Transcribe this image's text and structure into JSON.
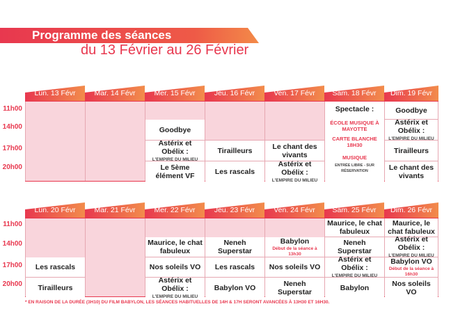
{
  "header": {
    "title": "Programme des séances",
    "subtitle": "du 13 Février au 26 Février"
  },
  "colors": {
    "accent": "#e8384f",
    "accent_light": "#f9d5dc",
    "tab_light": "#f28c4b"
  },
  "times": [
    "11h00",
    "14h00",
    "17h00",
    "20h00"
  ],
  "week1": {
    "days": [
      "Lun. 13 Févr",
      "Mar. 14 Févr",
      "Mer. 15 Févr",
      "Jeu. 16 Févr",
      "Ven. 17 Févr",
      "Sam. 18 Févr",
      "Dim. 19 Févr"
    ],
    "wed_14": "Goodbye",
    "wed_17_title": "Astérix et Obélix :",
    "wed_17_sub": "L'EMPIRE DU MILIEU",
    "wed_20": "Le 5ème élément VF",
    "thu_17": "Tirailleurs",
    "thu_20": "Les rascals",
    "fri_17": "Le chant des vivants",
    "fri_20_title": "Astérix et Obélix :",
    "fri_20_sub": "L'EMPIRE DU MILIEU",
    "sat_spectacle": "Spectacle :",
    "sat_school": "ÉCOLE MUSIQUE À MAYOTTE",
    "sat_carte": "CARTE BLANCHE 18H30",
    "sat_musique": "MUSIQUE",
    "sat_entree": "ENTRÉE LIBRE - SUR RÉSERVATION",
    "sun_11": "Goodbye",
    "sun_14_title": "Astérix et Obélix :",
    "sun_14_sub": "L'EMPIRE DU MILIEU",
    "sun_17": "Tirailleurs",
    "sun_20": "Le chant des vivants"
  },
  "week2": {
    "days": [
      "Lun. 20 Févr",
      "Mar. 21 Févr",
      "Mer. 22 Févr",
      "Jeu. 23 Févr",
      "Ven. 24 Févr",
      "Sam. 25 Févr",
      "Dim. 26 Févr"
    ],
    "mon_17": "Les rascals",
    "mon_20": "Tirailleurs",
    "wed_14": "Maurice, le chat fabuleux",
    "wed_17": "Nos soleils VO",
    "wed_20_title": "Astérix et Obélix :",
    "wed_20_sub": "L'EMPIRE DU MILIEU",
    "thu_14": "Neneh Superstar",
    "thu_17": "Les rascals",
    "thu_20": "Babylon VO",
    "fri_14": "Babylon",
    "fri_14_note": "Début de la séance à 13h30",
    "fri_17": "Nos soleils VO",
    "fri_20": "Neneh Superstar",
    "sat_11": "Maurice, le chat fabuleux",
    "sat_14": "Neneh Superstar",
    "sat_17_title": "Astérix et Obélix :",
    "sat_17_sub": "L'EMPIRE DU MILIEU",
    "sat_20": "Babylon",
    "sun_11": "Maurice, le chat fabuleux",
    "sun_14_title": "Astérix et Obélix :",
    "sun_14_sub": "L'EMPIRE DU MILIEU",
    "sun_17": "Babylon VO",
    "sun_17_note": "Début de la séance à 16h30",
    "sun_20": "Nos soleils VO"
  },
  "footnote": "* EN RAISON DE LA DURÉE (3H10) DU FILM BABYLON, LES SÉANCES HABITUELLES DE 14H & 17H SERONT AVANCÉES À 13H30 ET 16H30."
}
